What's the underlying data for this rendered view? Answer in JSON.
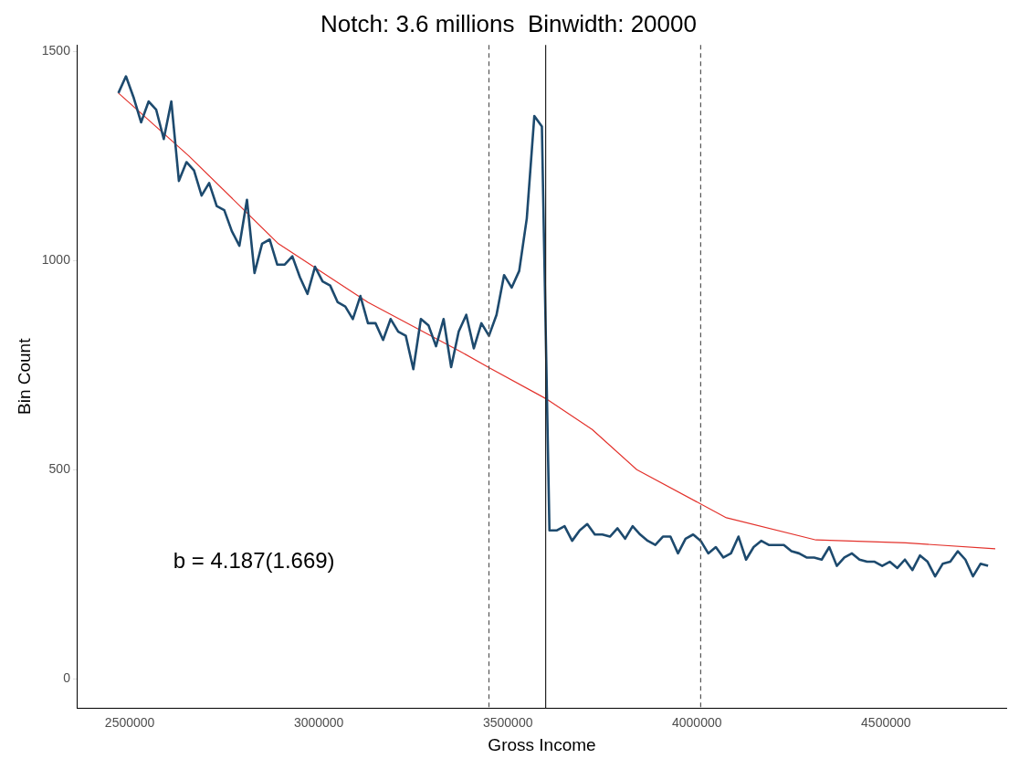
{
  "chart_data": {
    "type": "line",
    "title": "Notch: 3.6 millions  Binwidth: 20000",
    "xlabel": "Gross Income",
    "ylabel": "Bin Count",
    "xlim": [
      2362000,
      4818000
    ],
    "xticks": [
      2500000,
      3000000,
      3500000,
      4000000,
      4500000
    ],
    "ylim": [
      -70,
      1515
    ],
    "yticks": [
      0,
      500,
      1000,
      1500
    ],
    "grid": false,
    "legend": false,
    "marker": "none",
    "series": [
      {
        "color": "#1d4a6e",
        "x": [
          2470000,
          2490000,
          2510000,
          2530000,
          2550000,
          2570000,
          2590000,
          2610000,
          2630000,
          2650000,
          2670000,
          2690000,
          2710000,
          2730000,
          2750000,
          2770000,
          2790000,
          2810000,
          2830000,
          2850000,
          2870000,
          2890000,
          2910000,
          2930000,
          2950000,
          2970000,
          2990000,
          3010000,
          3030000,
          3050000,
          3070000,
          3090000,
          3110000,
          3130000,
          3150000,
          3170000,
          3190000,
          3210000,
          3230000,
          3250000,
          3270000,
          3290000,
          3310000,
          3330000,
          3350000,
          3370000,
          3390000,
          3410000,
          3430000,
          3450000,
          3470000,
          3490000,
          3510000,
          3530000,
          3550000,
          3570000,
          3590000,
          3610000,
          3630000,
          3650000,
          3670000,
          3690000,
          3710000,
          3730000,
          3750000,
          3770000,
          3790000,
          3810000,
          3830000,
          3850000,
          3870000,
          3890000,
          3910000,
          3930000,
          3950000,
          3970000,
          3990000,
          4010000,
          4030000,
          4050000,
          4070000,
          4090000,
          4110000,
          4130000,
          4150000,
          4170000,
          4190000,
          4210000,
          4230000,
          4250000,
          4270000,
          4290000,
          4310000,
          4330000,
          4350000,
          4370000,
          4390000,
          4410000,
          4430000,
          4450000,
          4470000,
          4490000,
          4510000,
          4530000,
          4550000,
          4570000,
          4590000,
          4610000,
          4630000,
          4650000,
          4670000,
          4690000,
          4710000,
          4730000,
          4750000,
          4770000
        ],
        "values": [
          1400,
          1440,
          1390,
          1330,
          1380,
          1360,
          1290,
          1380,
          1190,
          1235,
          1215,
          1155,
          1185,
          1130,
          1120,
          1070,
          1035,
          1145,
          970,
          1040,
          1050,
          990,
          990,
          1010,
          960,
          920,
          985,
          950,
          940,
          900,
          890,
          860,
          915,
          850,
          850,
          810,
          860,
          830,
          820,
          740,
          860,
          845,
          795,
          860,
          745,
          830,
          870,
          790,
          850,
          820,
          870,
          965,
          935,
          975,
          1100,
          1345,
          1320,
          355,
          355,
          365,
          330,
          355,
          370,
          345,
          345,
          340,
          360,
          335,
          365,
          345,
          330,
          320,
          340,
          340,
          300,
          335,
          345,
          330,
          300,
          315,
          290,
          300,
          340,
          285,
          315,
          330,
          320,
          320,
          320,
          305,
          300,
          290,
          290,
          285,
          315,
          270,
          290,
          300,
          285,
          280,
          280,
          270,
          280,
          265,
          285,
          260,
          295,
          280,
          245,
          275,
          280,
          305,
          285,
          245,
          275,
          270
        ]
      },
      {
        "color": "#e3312b",
        "x": [
          2470000,
          2656000,
          2893000,
          3130000,
          3367000,
          3450000,
          3600000,
          3723000,
          3841000,
          4078000,
          4315000,
          4552000,
          4789000
        ],
        "values": [
          1400,
          1250,
          1040,
          900,
          786,
          744,
          670,
          596,
          500,
          385,
          332,
          325,
          311
        ]
      }
    ],
    "ref_lines": [
      {
        "axis": "x",
        "value": 3450000,
        "line_style": "dashed",
        "color": "#555555"
      },
      {
        "axis": "x",
        "value": 3600000,
        "line_style": "solid",
        "color": "#222222"
      },
      {
        "axis": "x",
        "value": 4010000,
        "line_style": "dashed",
        "color": "#555555"
      }
    ],
    "annotations": [
      "b = 4.187(1.669)"
    ]
  }
}
